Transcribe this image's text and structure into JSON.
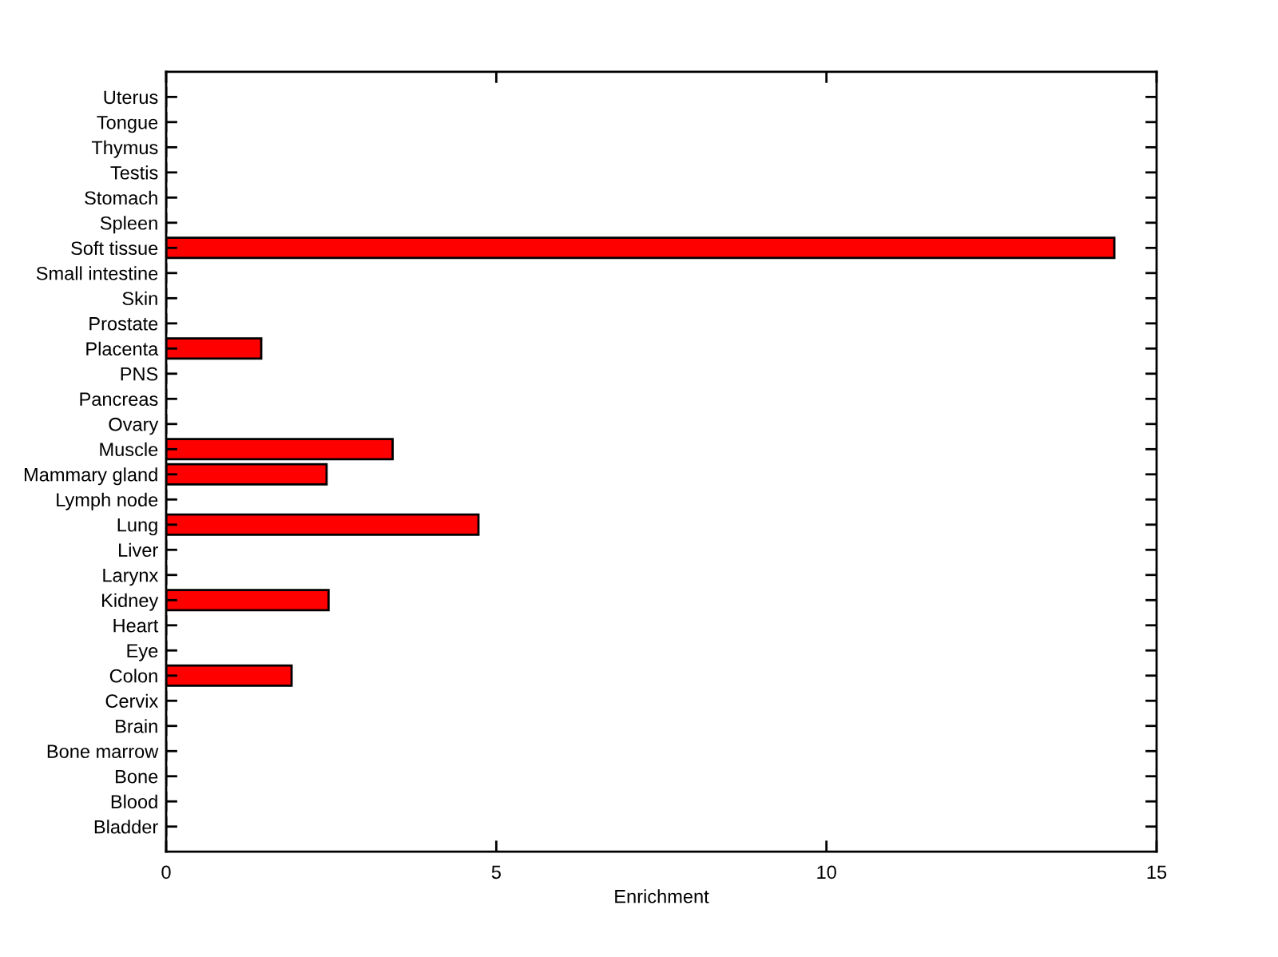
{
  "chart_data": {
    "type": "bar",
    "orientation": "horizontal",
    "xlabel": "Enrichment",
    "categories": [
      "Uterus",
      "Tongue",
      "Thymus",
      "Testis",
      "Stomach",
      "Spleen",
      "Soft tissue",
      "Small intestine",
      "Skin",
      "Prostate",
      "Placenta",
      "PNS",
      "Pancreas",
      "Ovary",
      "Muscle",
      "Mammary gland",
      "Lymph node",
      "Lung",
      "Liver",
      "Larynx",
      "Kidney",
      "Heart",
      "Eye",
      "Colon",
      "Cervix",
      "Brain",
      "Bone marrow",
      "Bone",
      "Blood",
      "Bladder"
    ],
    "values": [
      0,
      0,
      0,
      0,
      0,
      0,
      14.36,
      0,
      0,
      0,
      1.44,
      0,
      0,
      0,
      3.43,
      2.43,
      0,
      4.73,
      0,
      0,
      2.46,
      0,
      0,
      1.9,
      0,
      0,
      0,
      0,
      0,
      0
    ],
    "color": "#ff0000",
    "xlim": [
      0,
      15
    ],
    "xticks": [
      0,
      5,
      10,
      15
    ],
    "grid": false,
    "legend": false
  }
}
